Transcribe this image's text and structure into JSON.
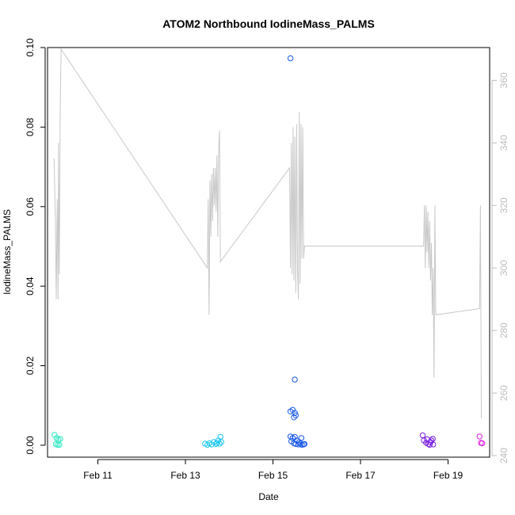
{
  "chart_data": {
    "type": "scatter",
    "title": "ATOM2 Northbound IodineMass_PALMS",
    "xlabel": "Date",
    "ylabel": "IodineMass_PALMS",
    "x_unit": "days in February",
    "xlim": [
      9.85,
      19.95
    ],
    "ylim": [
      -0.003,
      0.1
    ],
    "y2lim": [
      239.5,
      370.5
    ],
    "grid": false,
    "legend": "none",
    "x_ticks": [
      {
        "value": 11,
        "label": "Feb 11"
      },
      {
        "value": 13,
        "label": "Feb 13"
      },
      {
        "value": 15,
        "label": "Feb 15"
      },
      {
        "value": 17,
        "label": "Feb 17"
      },
      {
        "value": 19,
        "label": "Feb 19"
      }
    ],
    "y_ticks": [
      {
        "value": 0.0,
        "label": "0.00"
      },
      {
        "value": 0.02,
        "label": "0.02"
      },
      {
        "value": 0.04,
        "label": "0.04"
      },
      {
        "value": 0.06,
        "label": "0.06"
      },
      {
        "value": 0.08,
        "label": "0.08"
      },
      {
        "value": 0.1,
        "label": "0.10"
      }
    ],
    "y2_ticks": [
      {
        "value": 240,
        "label": "240"
      },
      {
        "value": 260,
        "label": "260"
      },
      {
        "value": 280,
        "label": "280"
      },
      {
        "value": 300,
        "label": "300"
      },
      {
        "value": 320,
        "label": "320"
      },
      {
        "value": 340,
        "label": "340"
      },
      {
        "value": 360,
        "label": "360"
      }
    ],
    "colors": {
      "background_line": "#c8c8c8",
      "right_axis": "#bdbdbd",
      "axis": "#000000"
    },
    "series": [
      {
        "color": "#2fe8c0",
        "points": [
          [
            10.01,
            0.0026
          ],
          [
            10.04,
            0.0003
          ],
          [
            10.06,
            0.0018
          ],
          [
            10.08,
            0.0001
          ],
          [
            10.1,
            0.0014
          ],
          [
            10.12,
            0.0001
          ],
          [
            10.14,
            0.0016
          ]
        ]
      },
      {
        "color": "#1ec8f0",
        "points": [
          [
            13.45,
            0.0004
          ],
          [
            13.5,
            0.0001
          ],
          [
            13.55,
            0.0005
          ],
          [
            13.6,
            0.0002
          ],
          [
            13.65,
            0.0008
          ],
          [
            13.7,
            0.0003
          ],
          [
            13.72,
            0.0006
          ],
          [
            13.75,
            0.0012
          ],
          [
            13.78,
            0.0004
          ],
          [
            13.8,
            0.0021
          ],
          [
            13.82,
            0.0008
          ]
        ]
      },
      {
        "color": "#1858e8",
        "points": [
          [
            15.4,
            0.0973
          ],
          [
            15.5,
            0.0165
          ],
          [
            15.4,
            0.0085
          ],
          [
            15.45,
            0.0089
          ],
          [
            15.5,
            0.0081
          ],
          [
            15.52,
            0.0075
          ],
          [
            15.48,
            0.007
          ],
          [
            15.4,
            0.0022
          ],
          [
            15.45,
            0.0018
          ],
          [
            15.5,
            0.0021
          ],
          [
            15.55,
            0.0012
          ],
          [
            15.6,
            0.0008
          ],
          [
            15.65,
            0.0018
          ],
          [
            15.42,
            0.001
          ],
          [
            15.48,
            0.0005
          ],
          [
            15.52,
            0.0003
          ],
          [
            15.58,
            0.0002
          ],
          [
            15.62,
            0.0004
          ],
          [
            15.66,
            0.0001
          ],
          [
            15.7,
            0.0002
          ],
          [
            15.72,
            0.0003
          ]
        ]
      },
      {
        "color": "#7a1ee0",
        "points": [
          [
            18.42,
            0.0025
          ],
          [
            18.45,
            0.0012
          ],
          [
            18.5,
            0.0006
          ],
          [
            18.52,
            0.0015
          ],
          [
            18.55,
            0.0003
          ],
          [
            18.58,
            0.0001
          ],
          [
            18.6,
            0.0008
          ],
          [
            18.62,
            0.0012
          ],
          [
            18.65,
            0.0016
          ],
          [
            18.66,
            0.0002
          ]
        ]
      },
      {
        "color": "#e020e0",
        "points": [
          [
            19.72,
            0.0022
          ],
          [
            19.75,
            0.0006
          ],
          [
            19.78,
            0.0005
          ]
        ]
      }
    ],
    "background_line": [
      [
        10.0,
        335
      ],
      [
        10.03,
        315
      ],
      [
        10.05,
        290
      ],
      [
        10.07,
        322
      ],
      [
        10.09,
        290
      ],
      [
        10.1,
        340
      ],
      [
        10.12,
        298
      ],
      [
        10.14,
        350
      ],
      [
        10.16,
        370
      ],
      [
        13.5,
        300
      ],
      [
        13.52,
        322
      ],
      [
        13.54,
        285
      ],
      [
        13.56,
        328
      ],
      [
        13.58,
        310
      ],
      [
        13.6,
        330
      ],
      [
        13.62,
        315
      ],
      [
        13.64,
        332
      ],
      [
        13.66,
        320
      ],
      [
        13.68,
        332
      ],
      [
        13.7,
        318
      ],
      [
        13.72,
        336
      ],
      [
        13.74,
        310
      ],
      [
        13.76,
        338
      ],
      [
        13.78,
        344
      ],
      [
        13.8,
        302
      ],
      [
        15.38,
        332
      ],
      [
        15.4,
        300
      ],
      [
        15.42,
        340
      ],
      [
        15.44,
        298
      ],
      [
        15.46,
        345
      ],
      [
        15.48,
        296
      ],
      [
        15.5,
        342
      ],
      [
        15.52,
        292
      ],
      [
        15.54,
        346
      ],
      [
        15.56,
        300
      ],
      [
        15.58,
        290
      ],
      [
        15.6,
        350
      ],
      [
        15.62,
        295
      ],
      [
        15.64,
        346
      ],
      [
        15.66,
        303
      ],
      [
        15.68,
        345
      ],
      [
        15.7,
        303
      ],
      [
        15.72,
        307
      ],
      [
        18.44,
        307
      ],
      [
        18.46,
        320
      ],
      [
        18.48,
        300
      ],
      [
        18.5,
        320
      ],
      [
        18.52,
        305
      ],
      [
        18.54,
        318
      ],
      [
        18.56,
        300
      ],
      [
        18.58,
        315
      ],
      [
        18.6,
        296
      ],
      [
        18.62,
        308
      ],
      [
        18.64,
        285
      ],
      [
        18.66,
        300
      ],
      [
        18.68,
        265
      ],
      [
        18.7,
        320
      ],
      [
        18.72,
        285
      ],
      [
        19.72,
        287
      ],
      [
        19.74,
        320
      ],
      [
        19.76,
        252
      ]
    ]
  }
}
